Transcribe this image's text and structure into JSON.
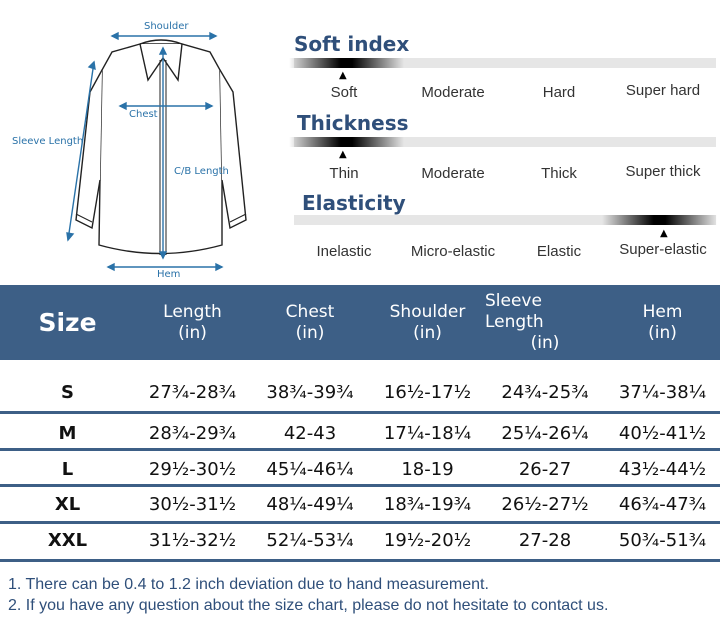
{
  "diagram": {
    "labels": {
      "shoulder": "Shoulder",
      "chest": "Chest",
      "sleeve_length": "Sleeve Length",
      "cb_length": "C/B Length",
      "hem": "Hem"
    },
    "accent_color": "#2a72a8"
  },
  "scales": [
    {
      "title": "Soft index",
      "options": [
        "Soft",
        "Moderate",
        "Hard",
        "Super hard"
      ],
      "selected": "Soft",
      "marker": "▲"
    },
    {
      "title": "Thickness",
      "options": [
        "Thin",
        "Moderate",
        "Thick",
        "Super thick"
      ],
      "selected": "Thin",
      "marker": "▲"
    },
    {
      "title": "Elasticity",
      "options": [
        "Inelastic",
        "Micro-elastic",
        "Elastic",
        "Super-elastic"
      ],
      "selected": "Super-elastic",
      "marker": "▲"
    }
  ],
  "table": {
    "header_color": "#3d5f86",
    "headers": [
      {
        "line1": "Size",
        "line2": ""
      },
      {
        "line1": "Length",
        "line2": "(in)"
      },
      {
        "line1": "Chest",
        "line2": "(in)"
      },
      {
        "line1": "Shoulder",
        "line2": "(in)"
      },
      {
        "line1": "Sleeve Length",
        "line2": "(in)"
      },
      {
        "line1": "Hem",
        "line2": "(in)"
      }
    ],
    "rows": [
      [
        "S",
        "27¾-28¾",
        "38¾-39¾",
        "16½-17½",
        "24¾-25¾",
        "37¼-38¼"
      ],
      [
        "M",
        "28¾-29¾",
        "42-43",
        "17¼-18¼",
        "25¼-26¼",
        "40½-41½"
      ],
      [
        "L",
        "29½-30½",
        "45¼-46¼",
        "18-19",
        "26-27",
        "43½-44½"
      ],
      [
        "XL",
        "30½-31½",
        "48¼-49¼",
        "18¾-19¾",
        "26½-27½",
        "46¾-47¾"
      ],
      [
        "XXL",
        "31½-32½",
        "52¼-53¼",
        "19½-20½",
        "27-28",
        "50¾-51¾"
      ]
    ]
  },
  "notes": [
    "1. There can be 0.4 to 1.2 inch deviation due to hand measurement.",
    "2. If you have any question about the size chart, please do not hesitate to contact us."
  ]
}
